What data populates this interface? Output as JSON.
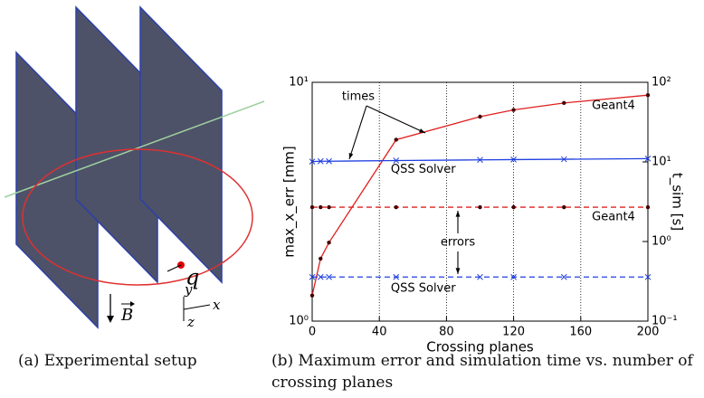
{
  "diagram": {
    "labels": {
      "charge": "q",
      "field": "B",
      "x": "x",
      "y": "y",
      "z": "z"
    },
    "caption": "(a) Experimental setup"
  },
  "chart_data": {
    "type": "line",
    "x_label": "Crossing planes",
    "y_label": "max_x_err [mm]",
    "y2_label": "t_sim [s]",
    "annotations": [
      "times",
      "errors"
    ],
    "x": [
      0,
      5,
      10,
      50,
      100,
      120,
      150,
      200
    ],
    "xlim": [
      0,
      200
    ],
    "xticks": [
      0,
      40,
      80,
      120,
      160,
      200
    ],
    "ylim": [
      1,
      10
    ],
    "yticks": [
      {
        "value": 1,
        "label": "10⁰"
      },
      {
        "value": 10,
        "label": "10¹"
      }
    ],
    "y2lim": [
      0.1,
      100
    ],
    "y2ticks": [
      {
        "value": 0.1,
        "label": "10⁻¹"
      },
      {
        "value": 1,
        "label": "10⁰"
      },
      {
        "value": 10,
        "label": "10¹"
      },
      {
        "value": 100,
        "label": "10²"
      }
    ],
    "log_scale": true,
    "grid": "x",
    "series": [
      {
        "name": "Geant4",
        "color": "#e02020",
        "axis": "y2",
        "linestyle": "solid",
        "marker": "dot",
        "values": [
          0.21,
          0.61,
          0.97,
          19,
          37,
          45,
          55,
          69
        ]
      },
      {
        "name": "QSS Solver",
        "color": "#2040e0",
        "axis": "y2",
        "linestyle": "solid",
        "marker": "x",
        "values": [
          10.1,
          10.2,
          10.2,
          10.4,
          10.6,
          10.7,
          10.8,
          11
        ]
      },
      {
        "name": "Geant4",
        "color": "#e02020",
        "axis": "y",
        "linestyle": "dashed",
        "marker": "dot",
        "values": [
          3,
          3,
          3,
          3,
          3,
          3,
          3,
          3
        ]
      },
      {
        "name": "QSS Solver",
        "color": "#2040e0",
        "axis": "y",
        "linestyle": "dashed",
        "marker": "x",
        "values": [
          1.53,
          1.53,
          1.53,
          1.53,
          1.53,
          1.53,
          1.53,
          1.53
        ]
      }
    ]
  },
  "caption": "(b) Maximum error and simulation time vs. number of crossing planes"
}
